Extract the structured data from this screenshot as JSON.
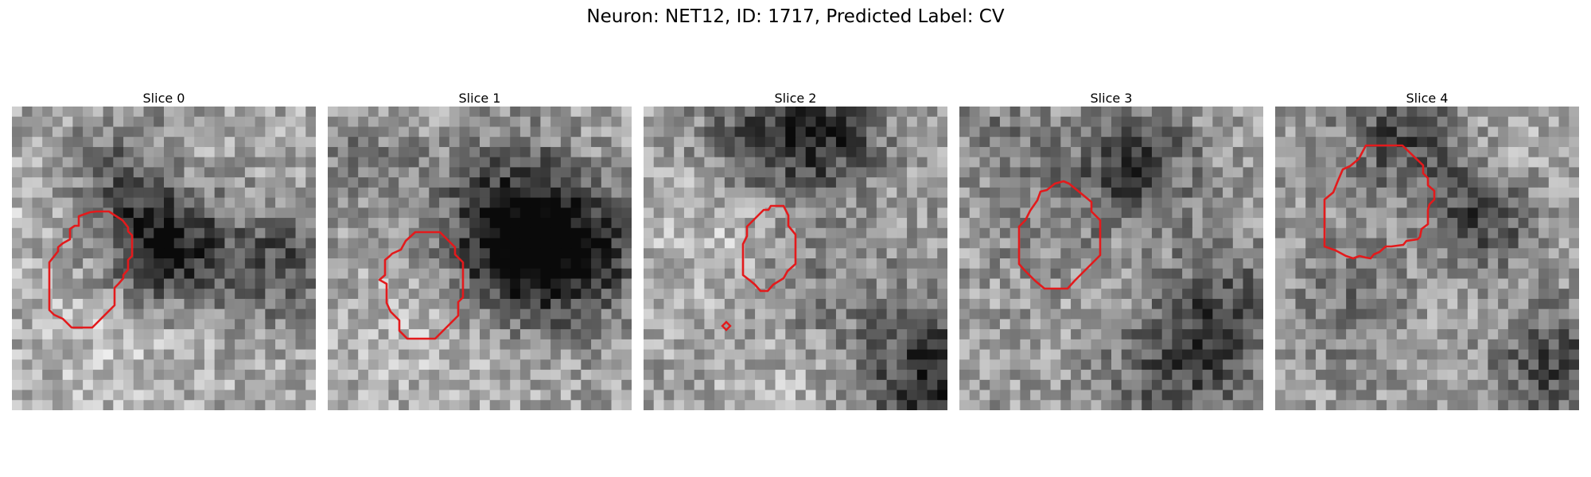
{
  "figure": {
    "title": "Neuron: NET12, ID: 1717, Predicted Label: CV",
    "outline_color": "#e31a1c"
  },
  "panels": [
    {
      "title": "Slice 0"
    },
    {
      "title": "Slice 1"
    },
    {
      "title": "Slice 2"
    },
    {
      "title": "Slice 3"
    },
    {
      "title": "Slice 4"
    }
  ]
}
